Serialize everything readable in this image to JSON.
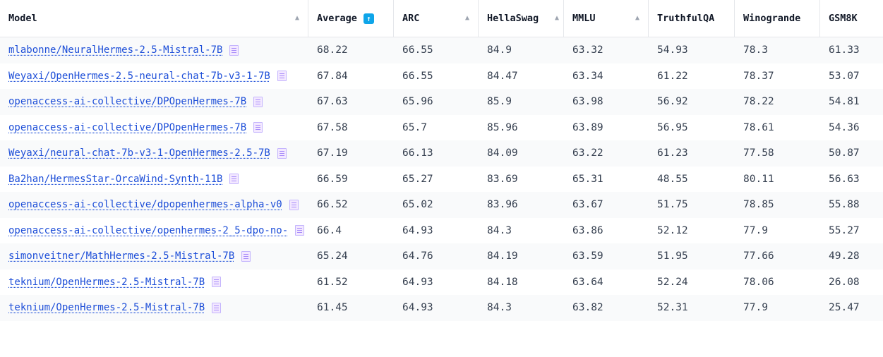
{
  "columns": [
    {
      "label": "Model",
      "sort": "▲"
    },
    {
      "label": "Average",
      "sort": "🠕"
    },
    {
      "label": "ARC",
      "sort": "▲"
    },
    {
      "label": "HellaSwag",
      "sort": "▲"
    },
    {
      "label": "MMLU",
      "sort": "▲"
    },
    {
      "label": "TruthfulQA",
      "sort": ""
    },
    {
      "label": "Winogrande",
      "sort": ""
    },
    {
      "label": "GSM8K",
      "sort": ""
    }
  ],
  "rows": [
    {
      "model": "mlabonne/NeuralHermes-2.5-Mistral-7B",
      "average": "68.22",
      "arc": "66.55",
      "hellaswag": "84.9",
      "mmlu": "63.32",
      "truthfulqa": "54.93",
      "winogrande": "78.3",
      "gsm8k": "61.33"
    },
    {
      "model": "Weyaxi/OpenHermes-2.5-neural-chat-7b-v3-1-7B",
      "average": "67.84",
      "arc": "66.55",
      "hellaswag": "84.47",
      "mmlu": "63.34",
      "truthfulqa": "61.22",
      "winogrande": "78.37",
      "gsm8k": "53.07"
    },
    {
      "model": "openaccess-ai-collective/DPOpenHermes-7B",
      "average": "67.63",
      "arc": "65.96",
      "hellaswag": "85.9",
      "mmlu": "63.98",
      "truthfulqa": "56.92",
      "winogrande": "78.22",
      "gsm8k": "54.81"
    },
    {
      "model": "openaccess-ai-collective/DPOpenHermes-7B",
      "average": "67.58",
      "arc": "65.7",
      "hellaswag": "85.96",
      "mmlu": "63.89",
      "truthfulqa": "56.95",
      "winogrande": "78.61",
      "gsm8k": "54.36"
    },
    {
      "model": "Weyaxi/neural-chat-7b-v3-1-OpenHermes-2.5-7B",
      "average": "67.19",
      "arc": "66.13",
      "hellaswag": "84.09",
      "mmlu": "63.22",
      "truthfulqa": "61.23",
      "winogrande": "77.58",
      "gsm8k": "50.87"
    },
    {
      "model": "Ba2han/HermesStar-OrcaWind-Synth-11B",
      "average": "66.59",
      "arc": "65.27",
      "hellaswag": "83.69",
      "mmlu": "65.31",
      "truthfulqa": "48.55",
      "winogrande": "80.11",
      "gsm8k": "56.63"
    },
    {
      "model": "openaccess-ai-collective/dpopenhermes-alpha-v0",
      "average": "66.52",
      "arc": "65.02",
      "hellaswag": "83.96",
      "mmlu": "63.67",
      "truthfulqa": "51.75",
      "winogrande": "78.85",
      "gsm8k": "55.88"
    },
    {
      "model": "openaccess-ai-collective/openhermes-2_5-dpo-no-",
      "average": "66.4",
      "arc": "64.93",
      "hellaswag": "84.3",
      "mmlu": "63.86",
      "truthfulqa": "52.12",
      "winogrande": "77.9",
      "gsm8k": "55.27"
    },
    {
      "model": "simonveitner/MathHermes-2.5-Mistral-7B",
      "average": "65.24",
      "arc": "64.76",
      "hellaswag": "84.19",
      "mmlu": "63.59",
      "truthfulqa": "51.95",
      "winogrande": "77.66",
      "gsm8k": "49.28"
    },
    {
      "model": "teknium/OpenHermes-2.5-Mistral-7B",
      "average": "61.52",
      "arc": "64.93",
      "hellaswag": "84.18",
      "mmlu": "63.64",
      "truthfulqa": "52.24",
      "winogrande": "78.06",
      "gsm8k": "26.08"
    },
    {
      "model": "teknium/OpenHermes-2.5-Mistral-7B",
      "average": "61.45",
      "arc": "64.93",
      "hellaswag": "84.3",
      "mmlu": "63.82",
      "truthfulqa": "52.31",
      "winogrande": "77.9",
      "gsm8k": "25.47"
    }
  ],
  "icons": {
    "model_card": "model-card-icon",
    "sort_asc": "sort-asc-icon",
    "sort_active": "sort-active-icon"
  },
  "colors": {
    "link": "#1d4ed8",
    "accent": "#0ea5e9",
    "stripe": "#f9fafb"
  }
}
